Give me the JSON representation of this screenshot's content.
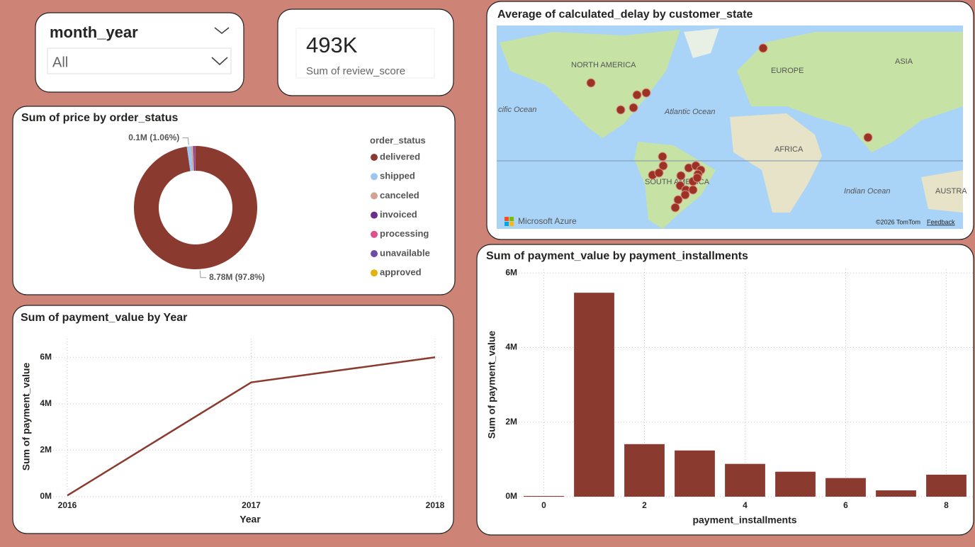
{
  "slicer": {
    "title": "month_year",
    "value": "All"
  },
  "card": {
    "value": "493K",
    "label": "Sum of review_score"
  },
  "map": {
    "title": "Average of calculated_delay by customer_state",
    "labels": [
      "NORTH AMERICA",
      "EUROPE",
      "ASIA",
      "cific Ocean",
      "Atlantic Ocean",
      "AFRICA",
      "SOUTH AMERICA",
      "Indian Ocean",
      "AUSTRA"
    ],
    "brand": "Microsoft Azure",
    "attribution": "©2026 TomTom",
    "feedback": "Feedback"
  },
  "chart_data": [
    {
      "type": "donut",
      "title": "Sum of price by order_status",
      "legend_title": "order_status",
      "categories": [
        "delivered",
        "shipped",
        "canceled",
        "invoiced",
        "processing",
        "unavailable",
        "approved"
      ],
      "values": [
        8.78,
        0.1,
        0.05,
        0.03,
        0.015,
        0.009,
        0.001
      ],
      "value_labels": [
        "8.78M (97.8%)",
        "0.1M (1.06%)",
        null,
        null,
        null,
        null,
        null
      ],
      "colors": [
        "#8b3a2f",
        "#9ec5ee",
        "#d4a293",
        "#6b2d8e",
        "#e0508a",
        "#6c4ba8",
        "#e2b40a"
      ]
    },
    {
      "type": "line",
      "title": "Sum of payment_value by Year",
      "x_label": "Year",
      "y_label": "Sum of payment_value",
      "x": [
        2016,
        2017,
        2018
      ],
      "values": [
        0.05,
        4.92,
        6.0
      ],
      "color": "#8b3a2f",
      "xlim": [
        2016,
        2018
      ],
      "xticks": [
        2016,
        2017,
        2018
      ],
      "ylim": [
        0,
        6.8
      ],
      "yticks": [
        {
          "value": 0,
          "label": "0M"
        },
        {
          "value": 2,
          "label": "2M"
        },
        {
          "value": 4,
          "label": "4M"
        },
        {
          "value": 6,
          "label": "6M"
        }
      ],
      "grid": true
    },
    {
      "type": "bar",
      "title": "Sum of payment_value by payment_installments",
      "x_label": "payment_installments",
      "y_label": "Sum of payment_value",
      "x": [
        0,
        1,
        2,
        3,
        4,
        5,
        6,
        7,
        8
      ],
      "values": [
        0.02,
        5.47,
        1.41,
        1.24,
        0.88,
        0.67,
        0.5,
        0.17,
        0.59
      ],
      "color": "#8b3a2f",
      "xlim": [
        -0.5,
        8.5
      ],
      "xticks": [
        0,
        2,
        4,
        6,
        8
      ],
      "ylim": [
        0,
        6.1
      ],
      "yticks": [
        {
          "value": 0,
          "label": "0M"
        },
        {
          "value": 2,
          "label": "2M"
        },
        {
          "value": 4,
          "label": "4M"
        },
        {
          "value": 6,
          "label": "6M"
        }
      ],
      "grid": true
    }
  ]
}
